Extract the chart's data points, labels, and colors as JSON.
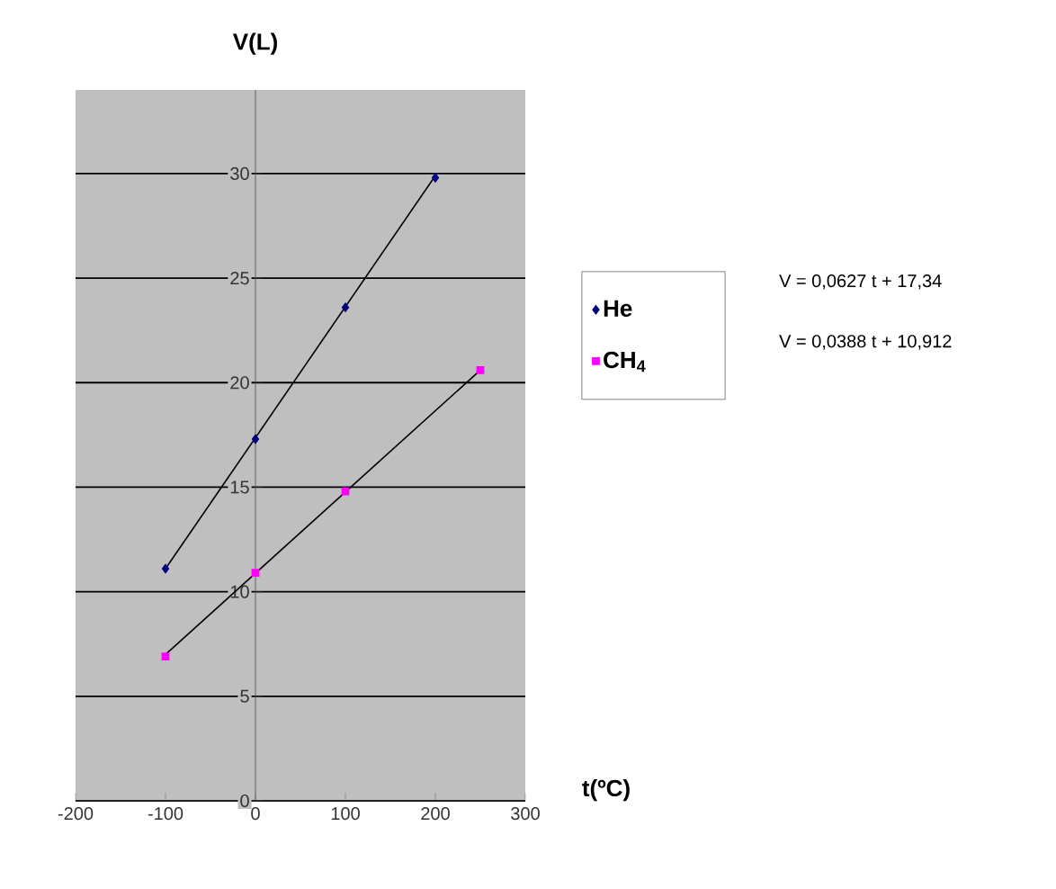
{
  "chart_data": {
    "type": "scatter",
    "xlabel": "t(ºC)",
    "ylabel": "V(L)",
    "xlim": [
      -200,
      300
    ],
    "ylim": [
      0,
      34
    ],
    "xticks": [
      -200,
      -100,
      0,
      100,
      200,
      300
    ],
    "yticks": [
      0,
      5,
      10,
      15,
      20,
      25,
      30
    ],
    "grid": "y",
    "legend": "right",
    "series": [
      {
        "name": "He",
        "color": "#000080",
        "marker": "diamond",
        "x": [
          -100,
          0,
          100,
          200
        ],
        "values": [
          11.1,
          17.3,
          23.6,
          29.8
        ]
      },
      {
        "name": "CH$_{4}$",
        "color": "#ff00ff",
        "marker": "square",
        "x": [
          -100,
          0,
          100,
          250
        ],
        "values": [
          6.9,
          10.9,
          14.8,
          20.6
        ]
      },
      {
        "type": "line",
        "color": "#000000",
        "marker": "none",
        "x": [
          -100,
          200
        ],
        "values": [
          11.1,
          29.9
        ]
      },
      {
        "type": "line",
        "color": "#000000",
        "marker": "none",
        "x": [
          -100,
          250
        ],
        "values": [
          7.0,
          20.6
        ]
      }
    ],
    "annotations": [
      "V = 0,0627 t + 17,34",
      "V = 0,0388 t + 10,912"
    ]
  }
}
